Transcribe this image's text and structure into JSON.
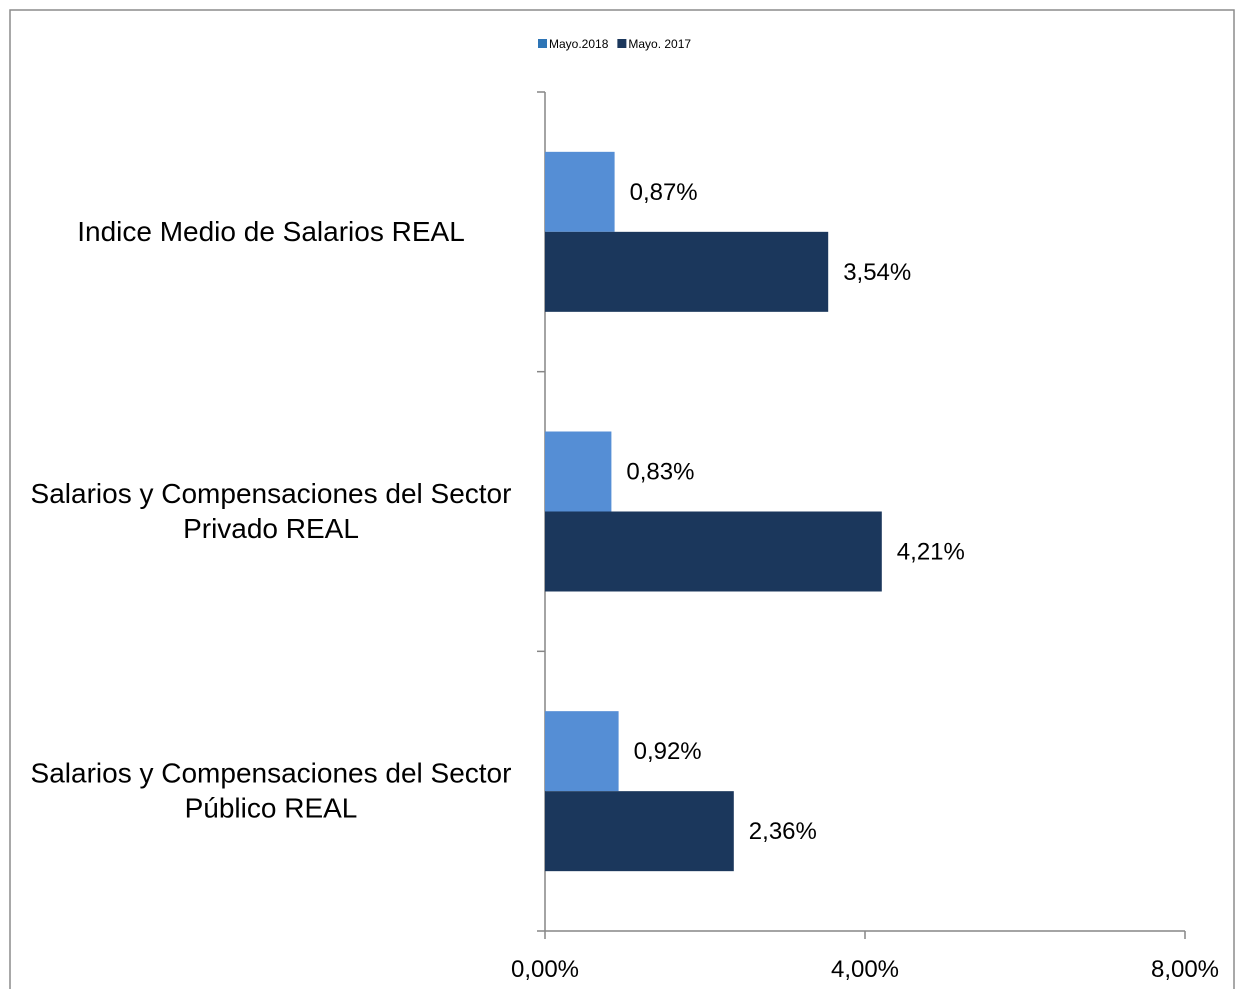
{
  "chart_data": {
    "type": "bar",
    "orientation": "horizontal",
    "categories": [
      [
        "Indice Medio de Salarios REAL"
      ],
      [
        "Salarios y Compensaciones del Sector",
        "Privado REAL"
      ],
      [
        "Salarios y Compensaciones del Sector",
        "Público REAL"
      ]
    ],
    "series": [
      {
        "name": "Mayo.2018",
        "color": "#558ED5",
        "values": [
          0.87,
          0.83,
          0.92
        ],
        "labels": [
          "0,87%",
          "0,83%",
          "0,92%"
        ]
      },
      {
        "name": "Mayo. 2017",
        "color": "#1B375C",
        "values": [
          3.54,
          4.21,
          2.36
        ],
        "labels": [
          "3,54%",
          "4,21%",
          "2,36%"
        ]
      }
    ],
    "xlim": [
      0,
      8
    ],
    "xticks": [
      0,
      4,
      8
    ],
    "xtick_labels": [
      "0,00%",
      "4,00%",
      "8,00%"
    ],
    "grid": false,
    "legend_position": "top-center",
    "title": "",
    "xlabel": "",
    "ylabel": ""
  }
}
